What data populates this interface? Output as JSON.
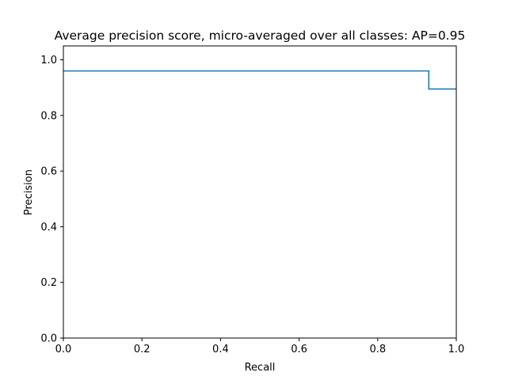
{
  "chart_data": {
    "type": "line",
    "step": "post",
    "title": "Average precision score, micro-averaged over all classes: AP=0.95",
    "xlabel": "Recall",
    "ylabel": "Precision",
    "xlim": [
      0.0,
      1.0
    ],
    "ylim": [
      0.0,
      1.05
    ],
    "grid": false,
    "x_ticks": [
      0.0,
      0.2,
      0.4,
      0.6,
      0.8,
      1.0
    ],
    "x_tick_labels": [
      "0.0",
      "0.2",
      "0.4",
      "0.6",
      "0.8",
      "1.0"
    ],
    "y_ticks": [
      0.0,
      0.2,
      0.4,
      0.6,
      0.8,
      1.0
    ],
    "y_tick_labels": [
      "0.0",
      "0.2",
      "0.4",
      "0.6",
      "0.8",
      "1.0"
    ],
    "series": [
      {
        "color": "#1f77b4",
        "x": [
          0.0,
          0.93,
          0.93,
          1.0
        ],
        "y": [
          0.96,
          0.96,
          0.895,
          0.895
        ]
      }
    ]
  }
}
